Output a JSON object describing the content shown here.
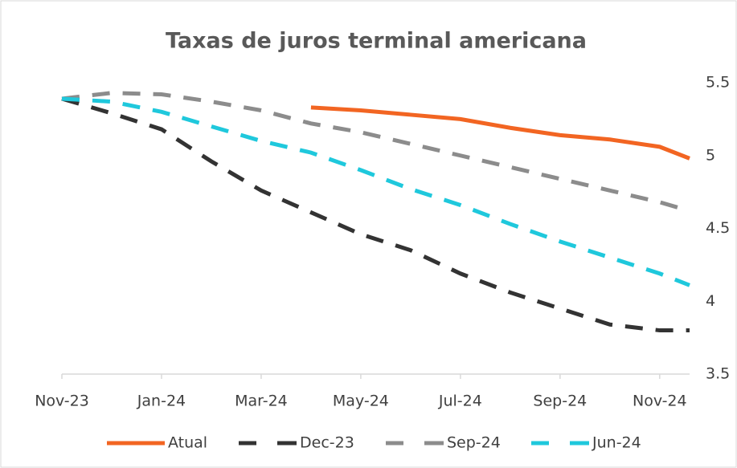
{
  "chart_data": {
    "type": "line",
    "title": "Taxas de juros terminal americana",
    "x": [
      0,
      1,
      2,
      3,
      4,
      5,
      6,
      7,
      8,
      9,
      10,
      11,
      12,
      12.6
    ],
    "xlim": [
      0,
      12.6
    ],
    "xticks": [
      {
        "value": 0,
        "label": "Nov-23"
      },
      {
        "value": 2,
        "label": "Jan-24"
      },
      {
        "value": 4,
        "label": "Mar-24"
      },
      {
        "value": 6,
        "label": "May-24"
      },
      {
        "value": 8,
        "label": "Jul-24"
      },
      {
        "value": 10,
        "label": "Sep-24"
      },
      {
        "value": 12,
        "label": "Nov-24"
      }
    ],
    "ylim": [
      3.5,
      5.5
    ],
    "yticks": [
      5.5,
      5,
      4.5,
      4,
      3.5
    ],
    "grid": false,
    "legend": "bottom",
    "series": [
      {
        "name": "Atual",
        "color": "#f26522",
        "dashed": false,
        "values": [
          null,
          null,
          null,
          null,
          null,
          5.33,
          5.31,
          5.28,
          5.25,
          5.19,
          5.14,
          5.11,
          5.06,
          4.98
        ]
      },
      {
        "name": "Dec-23",
        "color": "#333333",
        "dashed": true,
        "values": [
          5.39,
          5.29,
          5.18,
          4.96,
          4.76,
          4.61,
          4.46,
          4.35,
          4.19,
          4.06,
          3.95,
          3.84,
          3.8,
          3.8
        ]
      },
      {
        "name": "Sep-24",
        "color": "#8c8c8c",
        "dashed": true,
        "values": [
          5.39,
          5.43,
          5.42,
          5.37,
          5.31,
          5.22,
          5.16,
          5.08,
          5.0,
          4.92,
          4.84,
          4.76,
          4.68,
          4.62
        ]
      },
      {
        "name": "Jun-24",
        "color": "#1fc8dc",
        "dashed": true,
        "values": [
          5.39,
          5.37,
          5.3,
          5.2,
          5.1,
          5.02,
          4.9,
          4.77,
          4.66,
          4.53,
          4.41,
          4.3,
          4.19,
          4.11
        ]
      }
    ]
  }
}
